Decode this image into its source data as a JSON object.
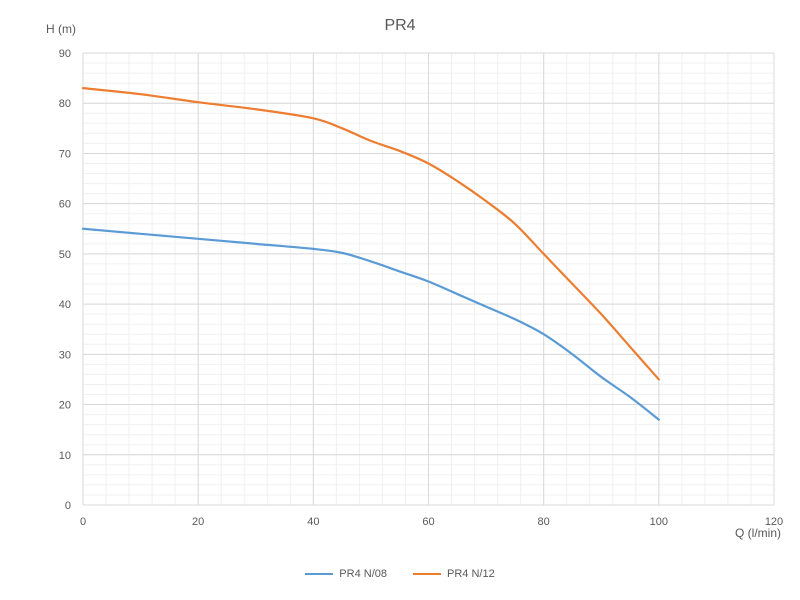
{
  "chart_data": {
    "type": "line",
    "title": "PR4",
    "xlabel": "Q (l/min)",
    "ylabel": "H (m)",
    "xlim": [
      0,
      120
    ],
    "ylim": [
      0,
      90
    ],
    "xticks": [
      0,
      20,
      40,
      60,
      80,
      100,
      120
    ],
    "yticks": [
      0,
      10,
      20,
      30,
      40,
      50,
      60,
      70,
      80,
      90
    ],
    "grid": true,
    "legend_position": "bottom",
    "series": [
      {
        "name": "PR4 N/08",
        "color": "#5b9bd5",
        "x": [
          0,
          10,
          20,
          30,
          40,
          45,
          50,
          55,
          60,
          65,
          70,
          75,
          80,
          85,
          90,
          95,
          100
        ],
        "y": [
          55,
          54,
          53,
          52,
          51,
          50.2,
          48.5,
          46.5,
          44.5,
          42,
          39.5,
          37,
          34,
          30,
          25.5,
          21.5,
          17
        ]
      },
      {
        "name": "PR4 N/12",
        "color": "#ed7d31",
        "x": [
          0,
          10,
          20,
          30,
          40,
          45,
          50,
          55,
          60,
          65,
          70,
          75,
          80,
          85,
          90,
          95,
          100
        ],
        "y": [
          83,
          81.8,
          80.2,
          78.8,
          77,
          75,
          72.5,
          70.5,
          68,
          64.5,
          60.5,
          56,
          50,
          44,
          38,
          31.5,
          25
        ]
      }
    ]
  }
}
